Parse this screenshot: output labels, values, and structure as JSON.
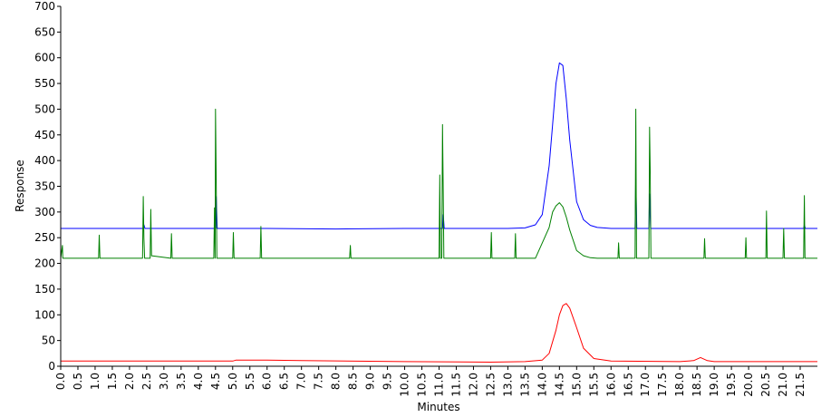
{
  "chart_data": {
    "type": "line",
    "title": "",
    "xlabel": "Minutes",
    "ylabel": "Response",
    "xlim": [
      0,
      22.0
    ],
    "ylim": [
      0,
      700
    ],
    "grid": false,
    "legend": "none",
    "y_ticks": [
      0,
      50,
      100,
      150,
      200,
      250,
      300,
      350,
      400,
      450,
      500,
      550,
      600,
      650,
      700
    ],
    "x_ticks": [
      "0.0",
      "0.5",
      "1.0",
      "1.5",
      "2.0",
      "2.5",
      "3.0",
      "3.5",
      "4.0",
      "4.5",
      "5.0",
      "5.5",
      "6.0",
      "6.5",
      "7.0",
      "7.5",
      "8.0",
      "8.5",
      "9.0",
      "9.5",
      "10.0",
      "10.5",
      "11.0",
      "11.5",
      "12.0",
      "12.5",
      "13.0",
      "13.5",
      "14.0",
      "14.5",
      "15.0",
      "15.5",
      "16.0",
      "16.5",
      "17.0",
      "17.5",
      "18.0",
      "18.5",
      "19.0",
      "19.5",
      "20.0",
      "20.5",
      "21.0",
      "21.5"
    ],
    "series": [
      {
        "color": "#0000ff",
        "x": [
          0.0,
          2.0,
          2.4,
          2.42,
          2.45,
          4.0,
          4.5,
          4.52,
          4.55,
          6.0,
          8.0,
          10.0,
          11.1,
          11.12,
          11.15,
          12.0,
          13.0,
          13.5,
          13.8,
          14.0,
          14.2,
          14.3,
          14.4,
          14.5,
          14.6,
          14.7,
          14.8,
          15.0,
          15.2,
          15.4,
          15.6,
          16.0,
          16.7,
          16.72,
          16.75,
          17.1,
          17.12,
          17.15,
          18.0,
          19.0,
          20.0,
          21.0,
          21.6,
          21.62,
          21.65,
          22.0
        ],
        "y": [
          268,
          268,
          268,
          275,
          268,
          268,
          268,
          330,
          268,
          268,
          267,
          268,
          268,
          295,
          268,
          268,
          268,
          269,
          275,
          295,
          390,
          470,
          550,
          590,
          585,
          520,
          440,
          320,
          285,
          274,
          270,
          268,
          268,
          365,
          268,
          268,
          335,
          268,
          268,
          268,
          268,
          268,
          268,
          275,
          268,
          268
        ]
      },
      {
        "color": "#008000",
        "x": [
          0.0,
          0.05,
          0.06,
          0.07,
          1.1,
          1.12,
          1.14,
          2.38,
          2.4,
          2.42,
          2.44,
          2.6,
          2.62,
          2.64,
          3.2,
          3.22,
          3.24,
          4.45,
          4.47,
          4.49,
          4.5,
          4.52,
          4.54,
          5.0,
          5.02,
          5.04,
          5.8,
          5.82,
          5.84,
          8.4,
          8.42,
          8.44,
          11.0,
          11.02,
          11.04,
          11.08,
          11.1,
          11.12,
          11.14,
          11.16,
          11.18,
          12.5,
          12.52,
          12.54,
          13.2,
          13.22,
          13.24,
          13.8,
          14.0,
          14.2,
          14.3,
          14.4,
          14.5,
          14.6,
          14.7,
          14.8,
          15.0,
          15.2,
          15.4,
          15.6,
          16.0,
          16.2,
          16.22,
          16.24,
          16.7,
          16.72,
          16.74,
          17.1,
          17.12,
          17.14,
          17.16,
          18.7,
          18.72,
          18.74,
          19.9,
          19.92,
          19.94,
          20.5,
          20.52,
          20.54,
          21.0,
          21.02,
          21.04,
          21.6,
          21.62,
          21.64,
          22.0
        ],
        "y": [
          210,
          235,
          210,
          210,
          210,
          255,
          210,
          210,
          330,
          250,
          210,
          210,
          305,
          215,
          210,
          258,
          210,
          210,
          308,
          210,
          500,
          360,
          210,
          210,
          260,
          210,
          210,
          272,
          210,
          210,
          235,
          210,
          210,
          372,
          210,
          210,
          470,
          340,
          210,
          210,
          210,
          210,
          260,
          210,
          210,
          258,
          210,
          210,
          240,
          270,
          300,
          312,
          318,
          310,
          290,
          265,
          225,
          215,
          211,
          210,
          210,
          210,
          240,
          210,
          210,
          500,
          210,
          210,
          465,
          380,
          210,
          210,
          248,
          210,
          210,
          250,
          210,
          210,
          302,
          210,
          210,
          268,
          210,
          210,
          332,
          210,
          210
        ]
      },
      {
        "color": "#ff0000",
        "x": [
          0.0,
          5.0,
          5.1,
          6.0,
          7.0,
          10.0,
          12.5,
          13.5,
          14.0,
          14.2,
          14.4,
          14.5,
          14.6,
          14.7,
          14.8,
          15.0,
          15.2,
          15.5,
          16.0,
          18.0,
          18.4,
          18.6,
          18.8,
          19.0,
          20.0,
          22.0
        ],
        "y": [
          10,
          10,
          12,
          12,
          11,
          9,
          8,
          9,
          12,
          25,
          70,
          100,
          118,
          122,
          113,
          75,
          35,
          15,
          10,
          9,
          11,
          17,
          11,
          9,
          9,
          9
        ]
      }
    ]
  }
}
